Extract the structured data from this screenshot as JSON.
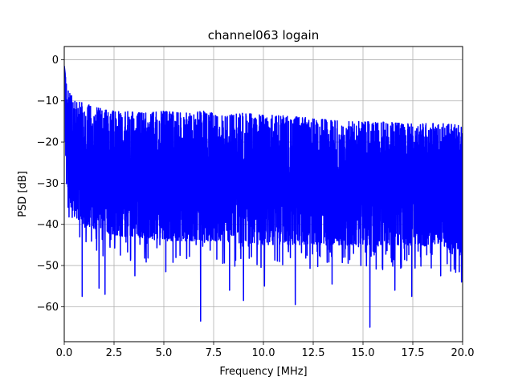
{
  "chart_data": {
    "type": "line",
    "title": "channel063 logain",
    "xlabel": "Frequency [MHz]",
    "ylabel": "PSD [dB]",
    "xlim": [
      0,
      20
    ],
    "ylim": [
      -68.5,
      3.2
    ],
    "grid": true,
    "line_color": "#0000ff",
    "xticks": [
      0,
      2.5,
      5,
      7.5,
      10,
      12.5,
      15,
      17.5,
      20
    ],
    "xtick_labels": [
      "0.0",
      "2.5",
      "5.0",
      "7.5",
      "10.0",
      "12.5",
      "15.0",
      "17.5",
      "20.0"
    ],
    "yticks": [
      0,
      -10,
      -20,
      -30,
      -40,
      -50,
      -60
    ],
    "ytick_labels": [
      "0",
      "−10",
      "−20",
      "−30",
      "−40",
      "−50",
      "−60"
    ],
    "series": [
      {
        "upper_envelope": {
          "x": [
            0,
            0.1,
            0.25,
            0.5,
            1.0,
            1.5,
            2.0,
            2.5,
            3.0,
            4.0,
            5.0,
            6.0,
            7.0,
            8.0,
            9.0,
            10.0,
            11.0,
            12.0,
            13.0,
            14.0,
            15.0,
            16.0,
            17.0,
            18.0,
            19.0,
            20.0
          ],
          "y": [
            -1.5,
            -5,
            -8,
            -9.5,
            -10.5,
            -11.5,
            -12,
            -12.5,
            -12.5,
            -13,
            -12.5,
            -13,
            -12.5,
            -13.5,
            -13,
            -13.5,
            -13.5,
            -14,
            -14.5,
            -15,
            -15,
            -15,
            -15.5,
            -15.5,
            -15.5,
            -16
          ]
        },
        "lower_envelope": {
          "x": [
            0,
            0.5,
            1.0,
            2.0,
            3.0,
            5.0,
            7.5,
            10.0,
            12.5,
            15.0,
            17.5,
            20.0
          ],
          "y": [
            -32,
            -38,
            -40,
            -42,
            -43,
            -44,
            -44,
            -45,
            -45,
            -45,
            -45,
            -46
          ]
        },
        "dips": [
          {
            "x": 0.9,
            "y": -57.5
          },
          {
            "x": 1.75,
            "y": -55.5
          },
          {
            "x": 2.05,
            "y": -57.0
          },
          {
            "x": 3.55,
            "y": -52.5
          },
          {
            "x": 5.1,
            "y": -51.5
          },
          {
            "x": 6.85,
            "y": -63.5
          },
          {
            "x": 8.3,
            "y": -56.0
          },
          {
            "x": 9.0,
            "y": -58.5
          },
          {
            "x": 10.05,
            "y": -55.0
          },
          {
            "x": 11.6,
            "y": -59.5
          },
          {
            "x": 13.45,
            "y": -54.5
          },
          {
            "x": 15.35,
            "y": -65.0
          },
          {
            "x": 16.6,
            "y": -56.0
          },
          {
            "x": 17.45,
            "y": -57.5
          },
          {
            "x": 18.9,
            "y": -52.5
          },
          {
            "x": 19.95,
            "y": -54.0
          }
        ]
      }
    ]
  }
}
